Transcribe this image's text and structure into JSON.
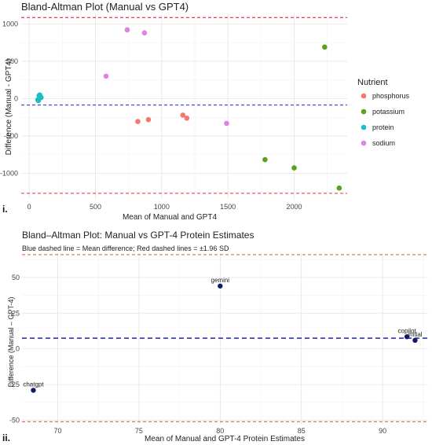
{
  "panel_labels": {
    "first": "i.",
    "second": "ii."
  },
  "chart_data": [
    {
      "type": "scatter",
      "title": "Bland-Altman Plot (Manual vs GPT4)",
      "xlabel": "Mean of Manual and GPT4",
      "ylabel": "Difference (Manual - GPT4)",
      "xlim": [
        -60,
        2400
      ],
      "ylim": [
        -1340,
        1130
      ],
      "x_ticks": [
        0,
        500,
        1000,
        1500,
        2000
      ],
      "y_ticks": [
        -1000,
        -500,
        0,
        500,
        1000
      ],
      "grid": true,
      "legend": {
        "title": "Nutrient",
        "placement": "right",
        "entries": [
          "phosphorus",
          "potassium",
          "protein",
          "sodium"
        ]
      },
      "colors": {
        "phosphorus": "#f8766d",
        "potassium": "#5aa21b",
        "protein": "#1ebcc4",
        "sodium": "#de82e8",
        "mean_line": "#3d3dd4",
        "limit_line": "#e0303a"
      },
      "reference_lines": {
        "mean": -85,
        "upper": 1085,
        "lower": -1265
      },
      "series": [
        {
          "name": "phosphorus",
          "points": [
            [
              820,
              -305
            ],
            [
              900,
              -280
            ],
            [
              1160,
              -220
            ],
            [
              1190,
              -260
            ]
          ]
        },
        {
          "name": "potassium",
          "points": [
            [
              2230,
              690
            ],
            [
              1780,
              -815
            ],
            [
              2000,
              -925
            ],
            [
              2340,
              -1195
            ]
          ]
        },
        {
          "name": "protein",
          "points": [
            [
              65,
              -15
            ],
            [
              75,
              40
            ],
            [
              80,
              50
            ],
            [
              90,
              15
            ],
            [
              70,
              -25
            ]
          ]
        },
        {
          "name": "sodium",
          "points": [
            [
              580,
              300
            ],
            [
              740,
              920
            ],
            [
              870,
              880
            ],
            [
              1490,
              -330
            ]
          ]
        }
      ]
    },
    {
      "type": "scatter",
      "title": "Bland–Altman Plot: Manual vs GPT-4 Protein Estimates",
      "subtitle": "Blue dashed line = Mean difference; Red dashed lines = ±1.96 SD",
      "xlabel": "Mean of Manual and GPT-4 Protein Estimates",
      "ylabel": "Difference (Manual – GPT-4)",
      "xlim": [
        67.8,
        92.8
      ],
      "ylim": [
        -53,
        67
      ],
      "x_ticks": [
        70,
        75,
        80,
        85,
        90
      ],
      "y_ticks": [
        -50,
        -25,
        0,
        25,
        50
      ],
      "grid": true,
      "colors": {
        "points": "#0d1a6e",
        "mean_line": "#2222aa",
        "limit_line": "#d85540"
      },
      "reference_lines": {
        "mean": 7.5,
        "upper": 66,
        "lower": -51
      },
      "points": [
        {
          "label": "gemini",
          "x": 80.0,
          "y": 44.0
        },
        {
          "label": "copilot",
          "x": 91.5,
          "y": 8.5
        },
        {
          "label": "initial",
          "x": 92.0,
          "y": 6.0
        },
        {
          "label": "chatgpt",
          "x": 68.5,
          "y": -29.0
        }
      ]
    }
  ]
}
